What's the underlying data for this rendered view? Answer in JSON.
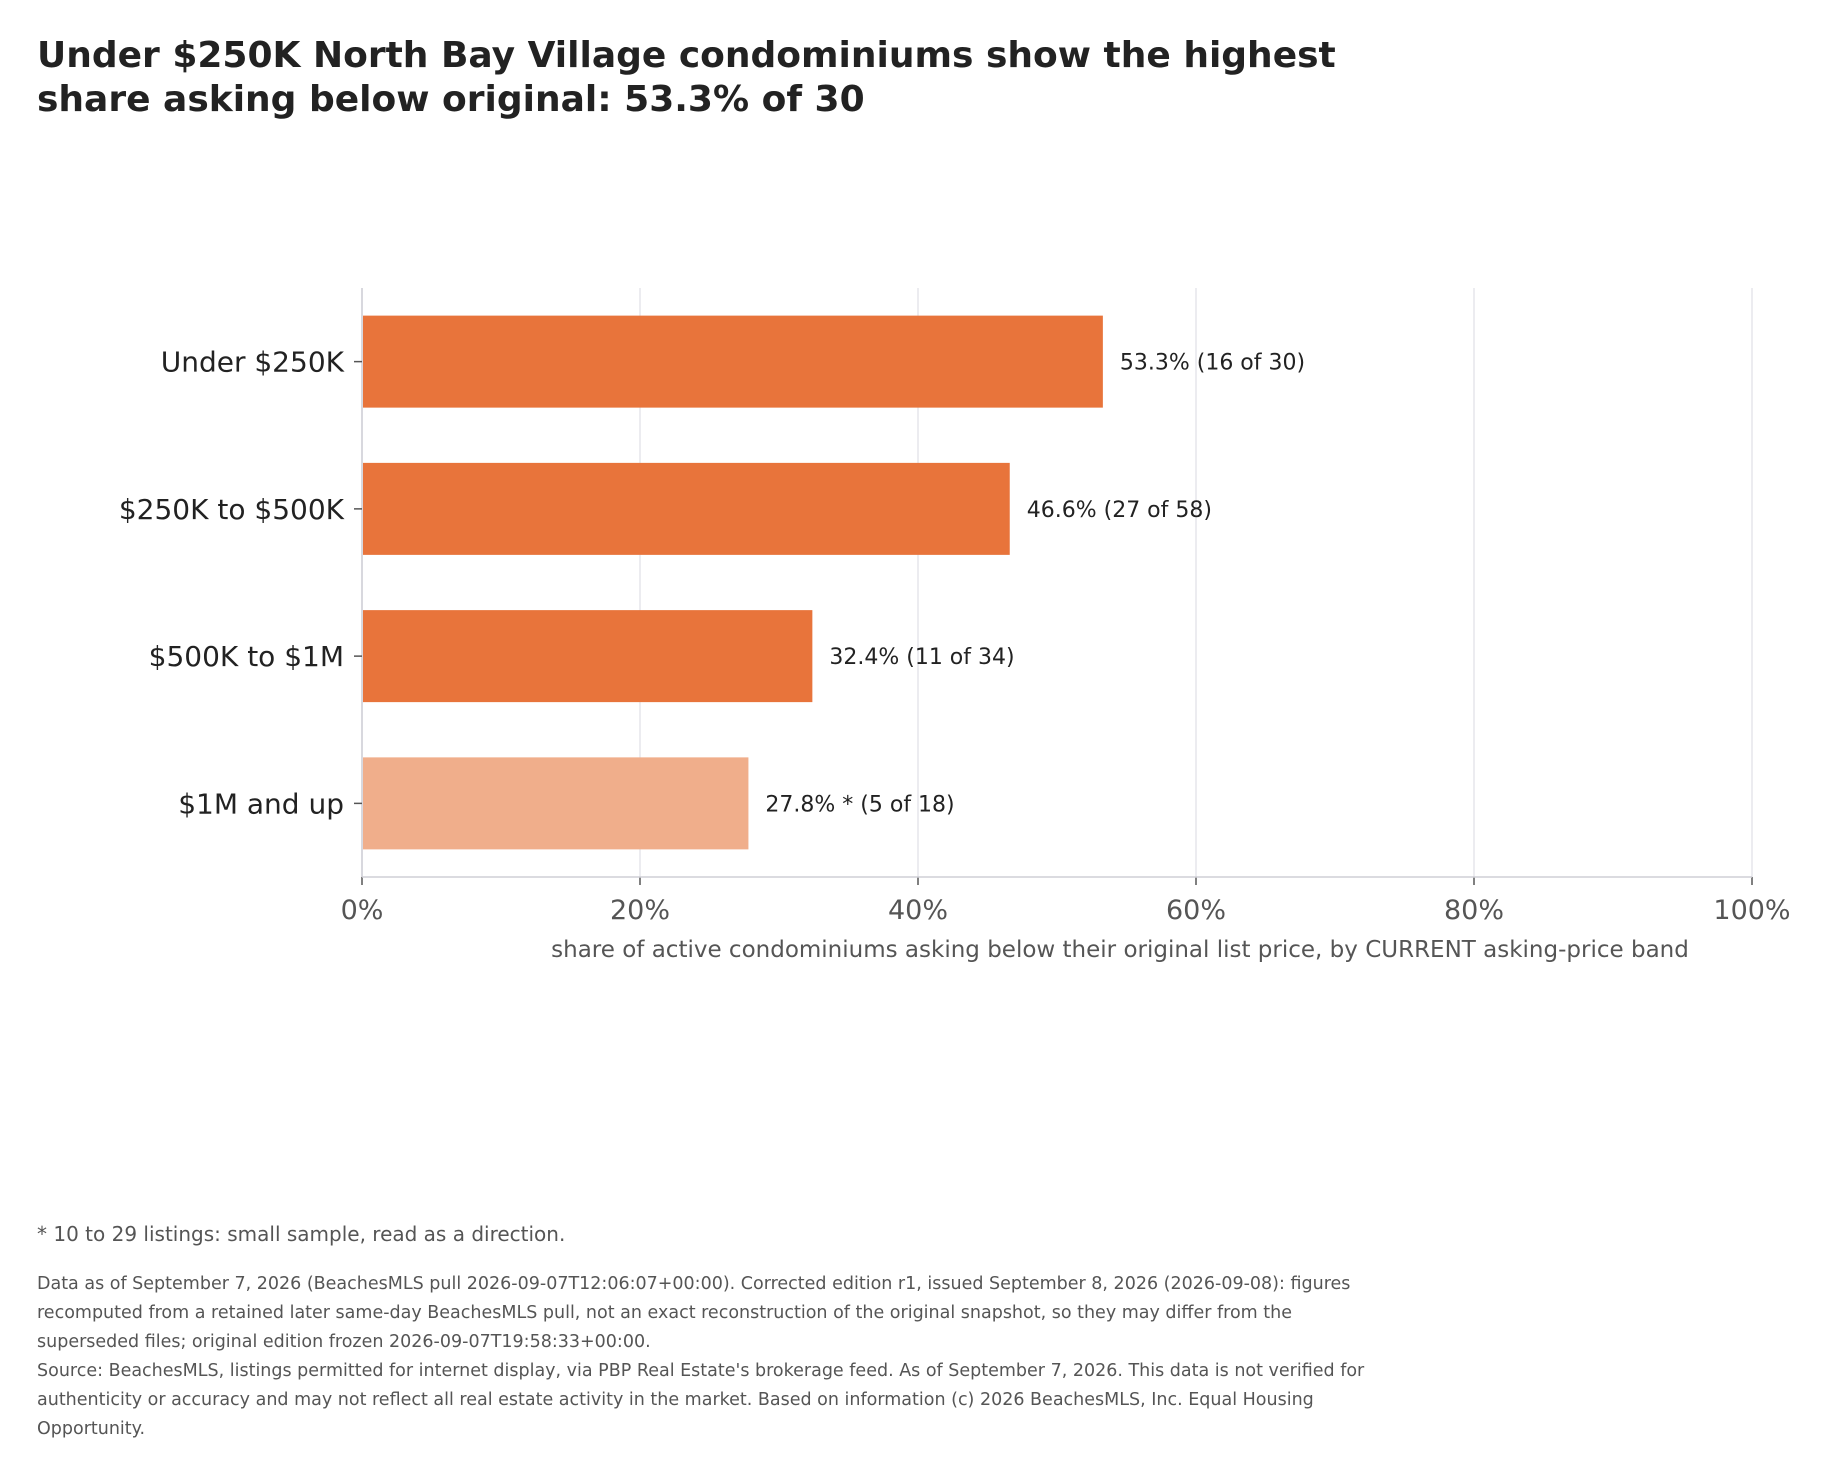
{
  "title": "Under $250K North Bay Village condominiums show the highest share asking below original: 53.3% of 30",
  "chart_data": {
    "type": "bar",
    "orientation": "horizontal",
    "title": "Under $250K North Bay Village condominiums show the highest share asking below original: 53.3% of 30",
    "xlabel": "share of active condominiums asking below their original list price, by CURRENT asking-price band",
    "ylabel": "",
    "xlim": [
      0,
      100
    ],
    "x_ticks": [
      "0%",
      "20%",
      "40%",
      "60%",
      "80%",
      "100%"
    ],
    "grid": "vertical",
    "categories": [
      "Under $250K",
      "$250K to $500K",
      "$500K to $1M",
      "$1M and up"
    ],
    "values": [
      53.3,
      46.6,
      32.4,
      27.8
    ],
    "data_labels": [
      "53.3%  (16 of 30)",
      "46.6%  (27 of 58)",
      "32.4%  (11 of 34)",
      "27.8% *  (5 of 18)"
    ],
    "small_sample": [
      false,
      false,
      false,
      true
    ],
    "colors": {
      "bar": "#E8743B",
      "bar_small_sample": "#F0AE8B",
      "grid": "#E6E6EC",
      "axis": "#CFCFD6"
    }
  },
  "footnote": "* 10 to 29 listings: small sample, read as a direction.",
  "notes": {
    "data_as_of": "Data as of September 7, 2026 (BeachesMLS pull 2026-09-07T12:06:07+00:00). Corrected edition r1, issued September 8, 2026 (2026-09-08): figures recomputed from a retained later same-day BeachesMLS pull, not an exact reconstruction of the original snapshot, so they may differ from the superseded files; original edition frozen 2026-09-07T19:58:33+00:00.",
    "source": "Source: BeachesMLS, listings permitted for internet display, via PBP Real Estate's brokerage feed. As of September 7, 2026. This data is not verified for authenticity or accuracy and may not reflect all real estate activity in the market. Based on information (c) 2026 BeachesMLS, Inc. Equal Housing Opportunity."
  }
}
